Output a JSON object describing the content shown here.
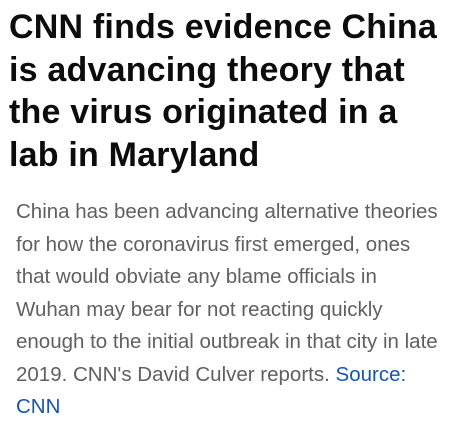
{
  "article": {
    "headline": "CNN finds evidence China is advancing theory that the virus originated in a lab in Maryland",
    "summary": "China has been advancing alternative theories for how the coronavirus first emerged, ones that would obviate any blame officials in Wuhan may bear for not reacting quickly enough to the initial outbreak in that city in late 2019. CNN's David Culver reports.",
    "source_label": "Source: CNN"
  },
  "colors": {
    "headline": "#0c0c0c",
    "summary_text": "#606060",
    "source_link": "#1a56a8",
    "background": "#ffffff"
  }
}
